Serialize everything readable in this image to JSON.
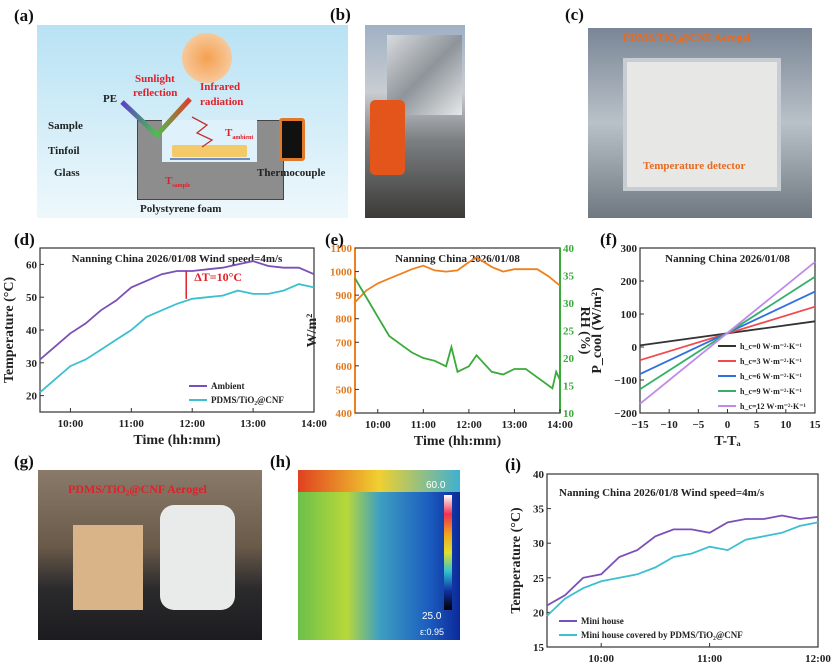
{
  "panels": {
    "a": {
      "label": "(a)",
      "pe": "PE",
      "sunlight": "Sunlight",
      "reflection": "reflection",
      "infrared": "Infrared",
      "radiation": "radiation",
      "sample": "Sample",
      "tinfoil": "Tinfoil",
      "glass": "Glass",
      "t_ambient": "T",
      "t_ambient_sub": "ambient",
      "t_sample": "T",
      "t_sample_sub": "sample",
      "thermocouple": "Thermocouple",
      "foam": "Polystyrene foam"
    },
    "b": {
      "label": "(b)"
    },
    "c": {
      "label": "(c)",
      "aerogel": "PDMS/TiO₂@CNF Aerogel",
      "detector": "Temperature detector"
    },
    "d": {
      "label": "(d)"
    },
    "e": {
      "label": "(e)"
    },
    "f": {
      "label": "(f)"
    },
    "g": {
      "label": "(g)",
      "aerogel": "PDMS/TiO₂@CNF Aerogel"
    },
    "h": {
      "label": "(h)",
      "max": "60.0",
      "min": "25.0",
      "emissivity": "ε:0.95"
    },
    "i": {
      "label": "(i)"
    }
  },
  "chart_data": [
    {
      "id": "d",
      "type": "line",
      "title": "Nanning China 2026/01/08  Wind speed=4m/s",
      "xlabel": "Time (hh:mm)",
      "ylabel": "Temperature (°C)",
      "xticks": [
        "10:00",
        "11:00",
        "12:00",
        "13:00",
        "14:00"
      ],
      "xlim": [
        "09:30",
        "14:00"
      ],
      "ylim": [
        15,
        65
      ],
      "yticks": [
        20,
        30,
        40,
        50,
        60
      ],
      "annotation": "ΔT=10°C",
      "legend": "bottom-right",
      "x": [
        "09:30",
        "09:45",
        "10:00",
        "10:15",
        "10:30",
        "10:45",
        "11:00",
        "11:15",
        "11:30",
        "11:45",
        "12:00",
        "12:15",
        "12:30",
        "12:45",
        "13:00",
        "13:15",
        "13:30",
        "13:45",
        "14:00"
      ],
      "series": [
        {
          "name": "Ambient",
          "color": "#7b4fb8",
          "values": [
            31,
            35,
            39,
            42,
            46,
            49,
            53,
            55,
            57,
            58,
            58,
            58.5,
            59,
            60,
            61,
            59.5,
            59,
            59,
            57
          ]
        },
        {
          "name": "PDMS/TiO₂@CNF",
          "color": "#3cc0cf",
          "values": [
            21,
            25,
            29,
            31,
            34,
            37,
            40,
            44,
            46,
            48,
            49.5,
            50,
            50.5,
            52,
            51,
            51,
            52,
            54,
            53
          ]
        }
      ]
    },
    {
      "id": "e",
      "type": "line",
      "title": "Nanning China 2026/01/08",
      "xlabel": "Time (hh:mm)",
      "ylabel": "W/m²",
      "ylabel_right": "RH (%)",
      "xticks": [
        "10:00",
        "11:00",
        "12:00",
        "13:00",
        "14:00"
      ],
      "xlim": [
        "09:30",
        "14:00"
      ],
      "ylim": [
        400,
        1100
      ],
      "yticks": [
        400,
        500,
        600,
        700,
        800,
        900,
        1000,
        1100
      ],
      "ylim_right": [
        10,
        40
      ],
      "yticks_right": [
        10,
        15,
        20,
        25,
        30,
        35,
        40
      ],
      "series": [
        {
          "axis": "left",
          "color": "#f07f1e",
          "x": [
            "09:30",
            "09:45",
            "10:00",
            "10:15",
            "10:30",
            "10:45",
            "11:00",
            "11:15",
            "11:30",
            "11:45",
            "12:00",
            "12:10",
            "12:30",
            "12:45",
            "13:00",
            "13:15",
            "13:30",
            "13:45",
            "14:00"
          ],
          "values": [
            870,
            920,
            950,
            970,
            990,
            1010,
            1025,
            1005,
            1000,
            1005,
            1040,
            1060,
            1020,
            1000,
            1010,
            1010,
            1010,
            980,
            940
          ]
        },
        {
          "axis": "right",
          "color": "#3aaa3a",
          "x": [
            "09:30",
            "09:45",
            "10:00",
            "10:15",
            "10:30",
            "10:45",
            "11:00",
            "11:15",
            "11:30",
            "11:37",
            "11:45",
            "12:00",
            "12:10",
            "12:30",
            "12:45",
            "13:00",
            "13:15",
            "13:30",
            "13:50",
            "13:55",
            "14:00"
          ],
          "values": [
            34.5,
            31,
            27.5,
            24,
            22.5,
            21,
            20,
            19.5,
            18.5,
            22,
            17.5,
            18.5,
            20.5,
            17.5,
            17,
            18,
            18,
            16.5,
            14.5,
            17.5,
            16
          ]
        }
      ]
    },
    {
      "id": "f",
      "type": "line",
      "title": "Nanning China 2026/01/08",
      "xlabel": "T-Tₐ",
      "ylabel": "P_cool (W/m²)",
      "xlim": [
        -15,
        15
      ],
      "xticks": [
        -15,
        -10,
        -5,
        0,
        5,
        10,
        15
      ],
      "ylim": [
        -200,
        300
      ],
      "yticks": [
        -200,
        -100,
        0,
        100,
        200,
        300
      ],
      "legend": "bottom-right",
      "x": [
        -15,
        15
      ],
      "series": [
        {
          "name": "h_c=0 W·m⁻²·K⁻¹",
          "color": "#333333",
          "values": [
            5,
            78
          ]
        },
        {
          "name": "h_c=3 W·m⁻²·K⁻¹",
          "color": "#f0494e",
          "values": [
            -40,
            122
          ]
        },
        {
          "name": "h_c=6 W·m⁻²·K⁻¹",
          "color": "#2f6fe0",
          "values": [
            -82,
            168
          ]
        },
        {
          "name": "h_c=9 W·m⁻²·K⁻¹",
          "color": "#35b06a",
          "values": [
            -128,
            213
          ]
        },
        {
          "name": "h_c=12 W·m⁻²·K⁻¹",
          "color": "#c08be8",
          "values": [
            -172,
            258
          ]
        }
      ]
    },
    {
      "id": "i",
      "type": "line",
      "title": "Nanning China 2026/01/8  Wind speed=4m/s",
      "xlabel": "Time (hh:mm)",
      "ylabel": "Temperature (°C)",
      "xticks": [
        "10:00",
        "11:00",
        "12:00"
      ],
      "xlim": [
        "09:30",
        "12:00"
      ],
      "ylim": [
        15,
        40
      ],
      "yticks": [
        15,
        20,
        25,
        30,
        35,
        40
      ],
      "legend": "bottom-left",
      "x": [
        "09:30",
        "09:40",
        "09:50",
        "10:00",
        "10:10",
        "10:20",
        "10:30",
        "10:40",
        "10:50",
        "11:00",
        "11:10",
        "11:20",
        "11:30",
        "11:40",
        "11:50",
        "12:00"
      ],
      "series": [
        {
          "name": "Mini house",
          "color": "#7b4fb8",
          "values": [
            21,
            22.5,
            25,
            25.5,
            28,
            29,
            31,
            32,
            32,
            31.5,
            33,
            33.5,
            33.5,
            34,
            33.5,
            33.8
          ]
        },
        {
          "name": "Mini house covered by PDMS/TiO₂@CNF",
          "color": "#3cc0cf",
          "values": [
            19.5,
            22,
            23.5,
            24.5,
            25,
            25.5,
            26.5,
            28,
            28.5,
            29.5,
            29,
            30.5,
            31,
            31.5,
            32.5,
            33
          ]
        }
      ]
    }
  ]
}
